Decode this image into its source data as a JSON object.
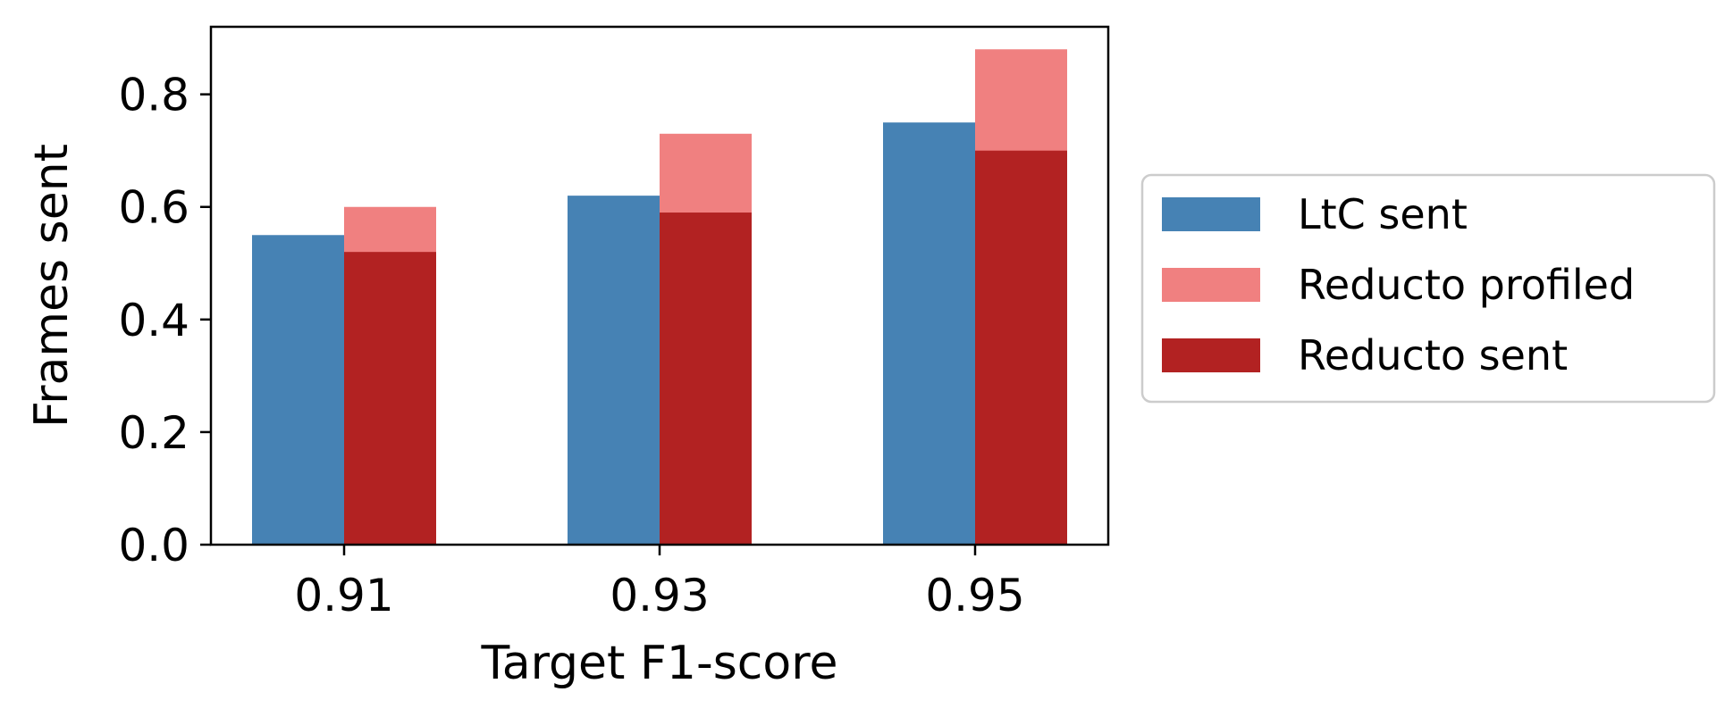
{
  "chart_data": {
    "type": "bar",
    "categories": [
      "0.91",
      "0.93",
      "0.95"
    ],
    "series": [
      {
        "name": "LtC sent",
        "values": [
          0.55,
          0.62,
          0.75
        ],
        "color": "#4682b4"
      },
      {
        "name": "Reducto profiled",
        "values": [
          0.6,
          0.73,
          0.88
        ],
        "color": "#f08080"
      },
      {
        "name": "Reducto sent",
        "values": [
          0.52,
          0.59,
          0.7
        ],
        "color": "#b22222"
      }
    ],
    "overlay": "Reducto sent is drawn on top of Reducto profiled at the same x position",
    "xlabel": "Target F1-score",
    "ylabel": "Frames sent",
    "ylim": [
      0,
      0.92
    ],
    "yticks": [
      "0.0",
      "0.2",
      "0.4",
      "0.6",
      "0.8"
    ],
    "ytick_values": [
      0.0,
      0.2,
      0.4,
      0.6,
      0.8
    ],
    "grid": false,
    "legend": "outside-right"
  }
}
